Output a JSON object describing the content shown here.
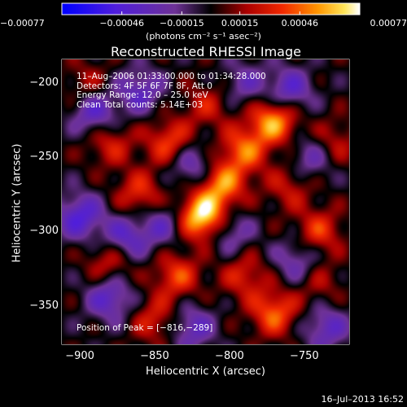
{
  "chart_data": {
    "type": "heatmap",
    "title": "Reconstructed RHESSI Image",
    "xlabel": "Heliocentric X (arcsec)",
    "ylabel": "Heliocentric Y (arcsec)",
    "xlim": [
      -912,
      -720
    ],
    "ylim": [
      -376,
      -184
    ],
    "x_ticks": [
      -900,
      -850,
      -800,
      -750
    ],
    "x_tick_labels": [
      "−900",
      "−850",
      "−800",
      "−750"
    ],
    "y_ticks": [
      -200,
      -250,
      -300,
      -350
    ],
    "y_tick_labels": [
      "−200",
      "−250",
      "−300",
      "−350"
    ],
    "colorbar": {
      "range": [
        -0.00077,
        0.00077
      ],
      "ticks": [
        -0.00077,
        -0.00046,
        -0.00015,
        0.00015,
        0.00046,
        0.00077
      ],
      "tick_labels": [
        "−0.00077",
        "−0.00046",
        "−0.00015",
        "0.00015",
        "0.00046",
        "0.00077"
      ],
      "unit_label": "(photons cm⁻² s⁻¹ asec⁻²)"
    },
    "info_lines": [
      "11–Aug–2006 01:33:00.000 to 01:34:28.000",
      "Detectors: 4F 5F 6F 7F 8F, Att 0",
      "Energy Range: 12.0 – 25.0 keV",
      "Clean     Total counts: 5.14E+03"
    ],
    "peak_label": "Position of Peak = [−816,−289]",
    "peak": [
      -816,
      -289
    ],
    "limb_curve": [
      [
        -912,
        -266
      ],
      [
        -902,
        -308
      ],
      [
        -890,
        -350
      ],
      [
        -880,
        -376
      ]
    ],
    "sources": [
      {
        "x": -818,
        "y": -290,
        "value": 0.00077
      },
      {
        "x": -805,
        "y": -268,
        "value": 0.00052
      },
      {
        "x": -770,
        "y": -225,
        "value": 0.0006
      },
      {
        "x": -790,
        "y": -245,
        "value": 0.00045
      },
      {
        "x": -840,
        "y": -240,
        "value": 0.0004
      },
      {
        "x": -860,
        "y": -275,
        "value": 0.00035
      },
      {
        "x": -880,
        "y": -320,
        "value": 0.00032
      },
      {
        "x": -835,
        "y": -330,
        "value": 0.00038
      },
      {
        "x": -770,
        "y": -355,
        "value": 0.00045
      },
      {
        "x": -790,
        "y": -330,
        "value": 0.0003
      },
      {
        "x": -880,
        "y": -240,
        "value": 0.0003
      },
      {
        "x": -740,
        "y": -300,
        "value": 0.00035
      },
      {
        "x": -815,
        "y": -215,
        "value": 0.00025
      },
      {
        "x": -760,
        "y": -270,
        "value": 0.00025
      },
      {
        "x": -730,
        "y": -240,
        "value": 0.00025
      },
      {
        "x": -850,
        "y": -360,
        "value": 0.0003
      },
      {
        "x": -895,
        "y": -200,
        "value": 0.0002
      },
      {
        "x": -740,
        "y": -335,
        "value": 0.0002
      },
      {
        "x": -900,
        "y": -290,
        "value": -0.00045
      },
      {
        "x": -890,
        "y": -220,
        "value": -0.0004
      },
      {
        "x": -860,
        "y": -205,
        "value": -0.00035
      },
      {
        "x": -760,
        "y": -205,
        "value": -0.0004
      },
      {
        "x": -870,
        "y": -305,
        "value": -0.0004
      },
      {
        "x": -825,
        "y": -255,
        "value": -0.00035
      },
      {
        "x": -800,
        "y": -300,
        "value": -0.0003
      },
      {
        "x": -755,
        "y": -320,
        "value": -0.0003
      },
      {
        "x": -825,
        "y": -365,
        "value": -0.00035
      },
      {
        "x": -735,
        "y": -365,
        "value": -0.00035
      },
      {
        "x": -845,
        "y": -295,
        "value": -0.0003
      },
      {
        "x": -880,
        "y": -345,
        "value": -0.0004
      },
      {
        "x": -745,
        "y": -250,
        "value": -0.0003
      },
      {
        "x": -790,
        "y": -200,
        "value": -0.00025
      }
    ]
  },
  "footer": {
    "timestamp": "16–Jul–2013 16:52"
  }
}
